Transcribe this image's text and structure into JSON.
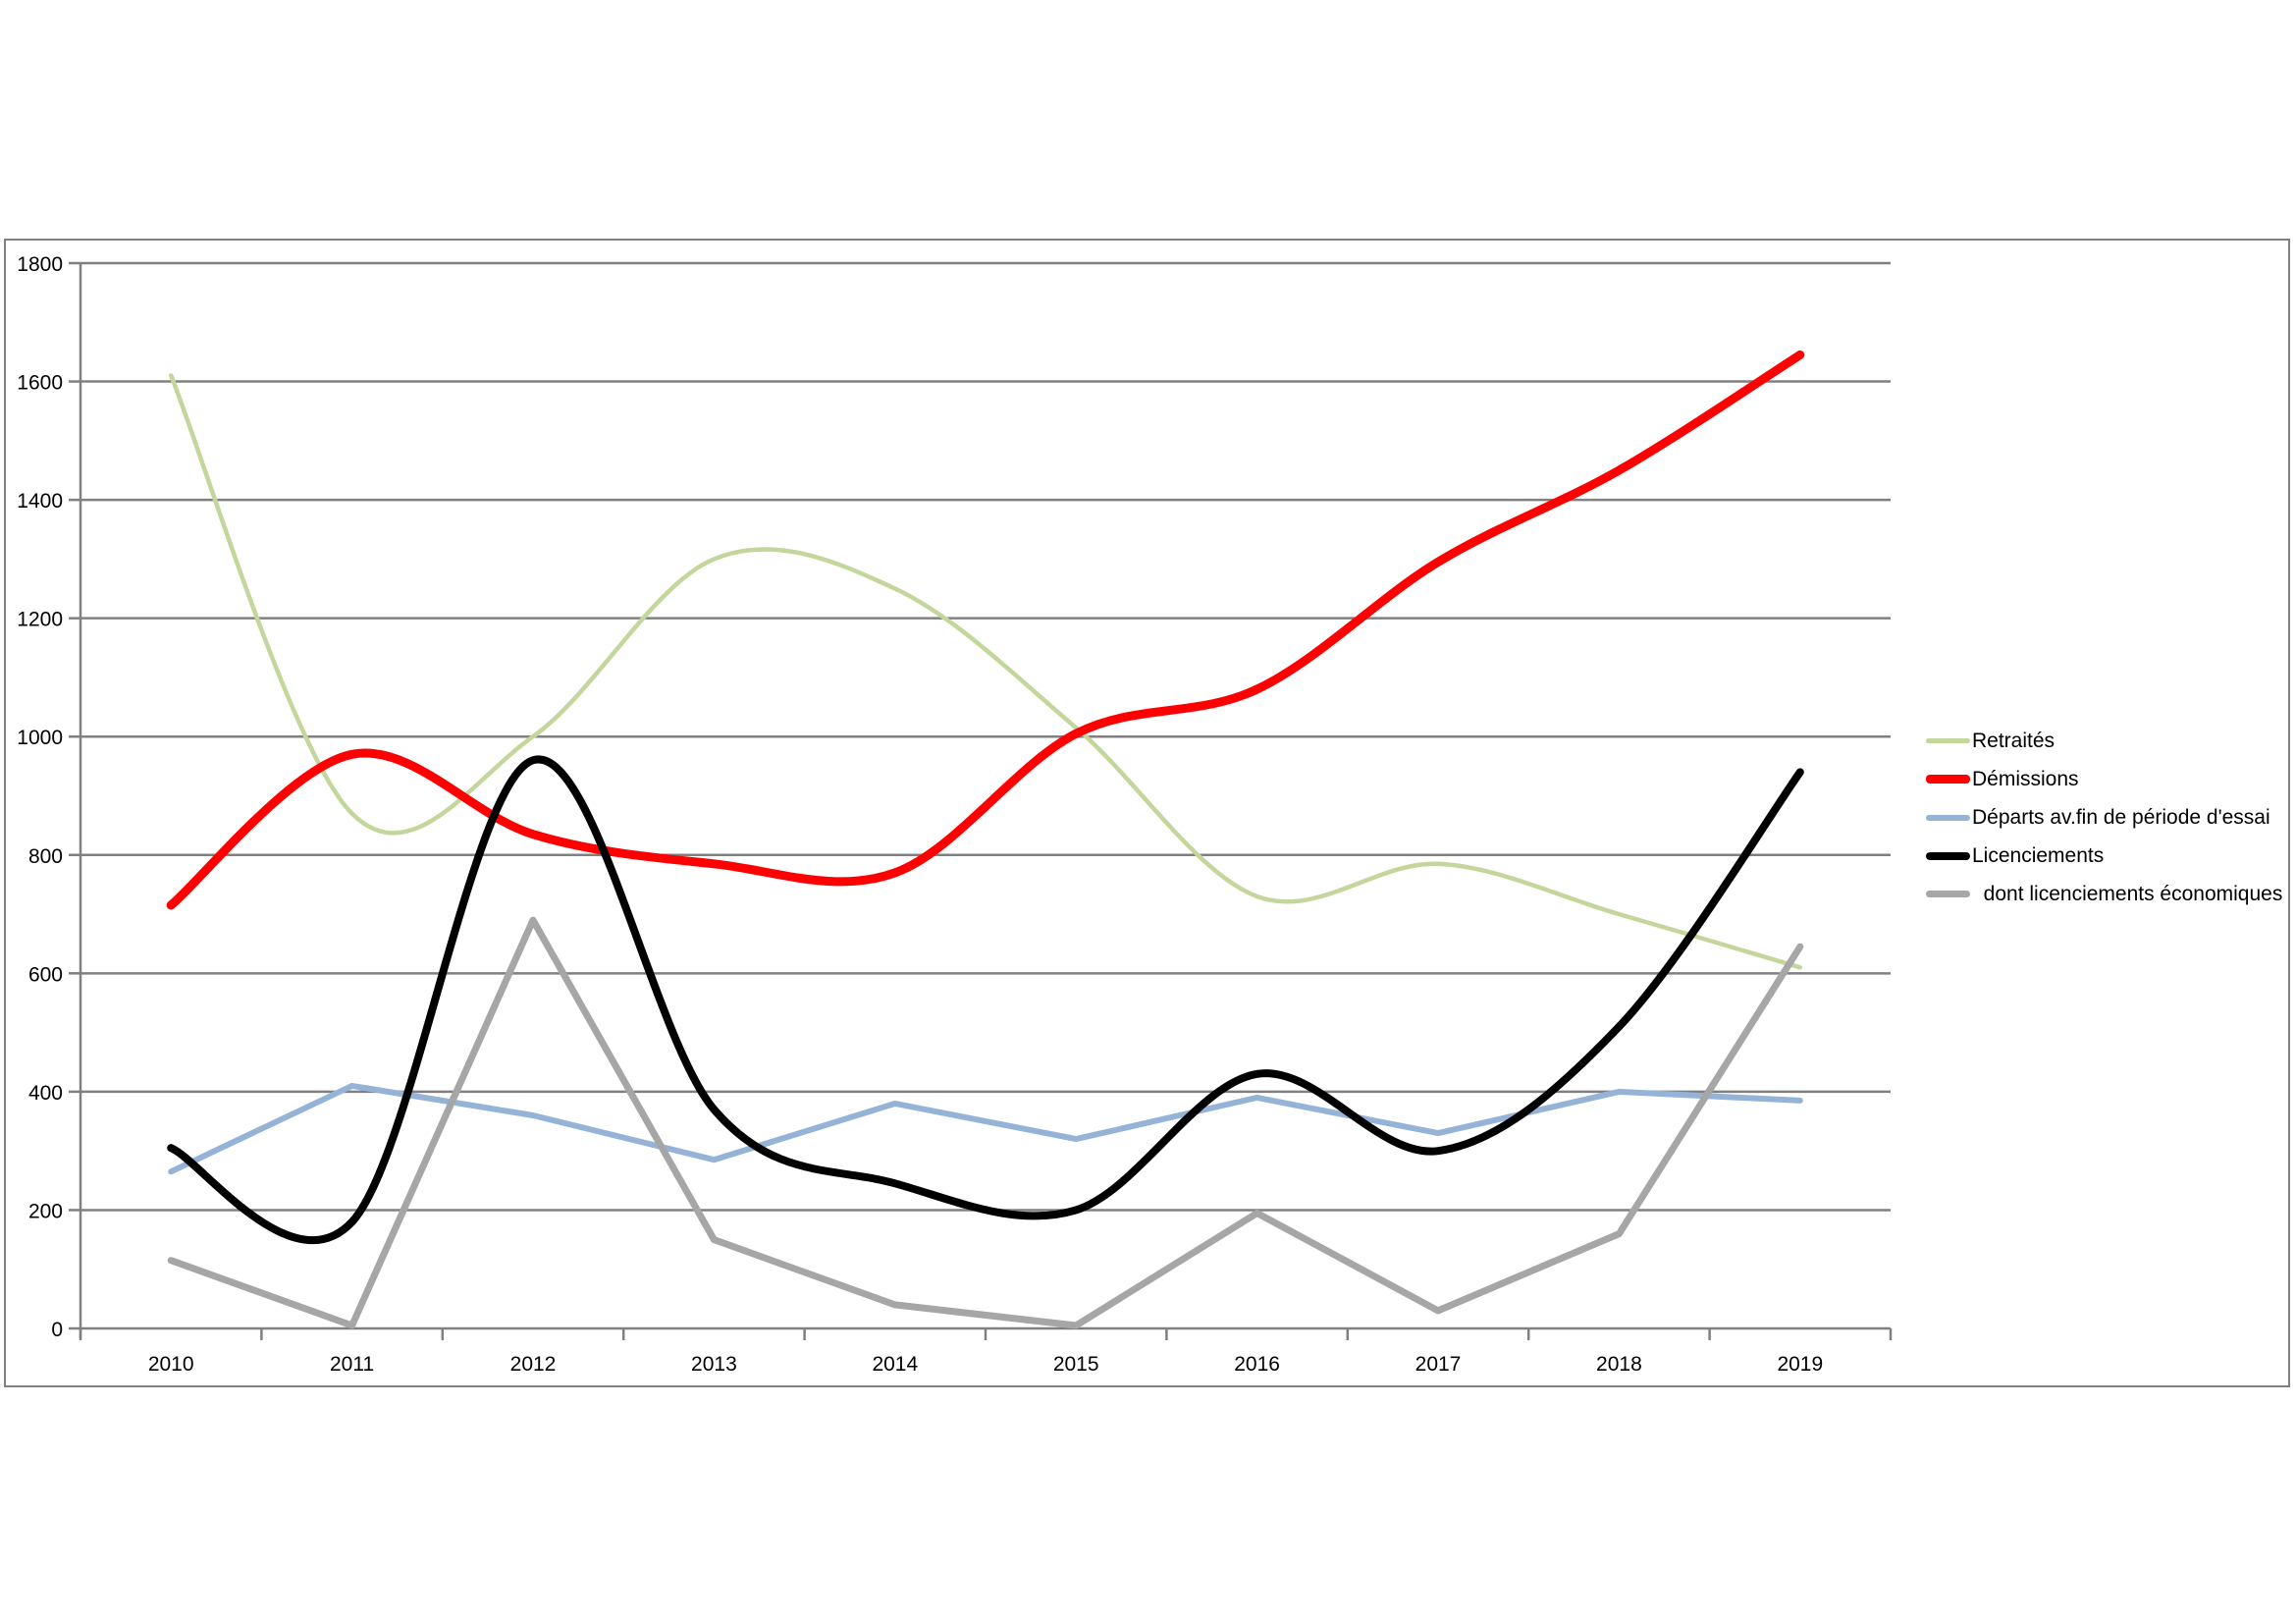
{
  "chart_data": {
    "type": "line",
    "title": "",
    "xlabel": "",
    "ylabel": "",
    "categories": [
      "2010",
      "2011",
      "2012",
      "2013",
      "2014",
      "2015",
      "2016",
      "2017",
      "2018",
      "2019"
    ],
    "ylim": [
      0,
      1800
    ],
    "ytick_step": 200,
    "y_tick_labels": [
      "0",
      "200",
      "400",
      "600",
      "800",
      "1000",
      "1200",
      "1400",
      "1600",
      "1800"
    ],
    "grid": true,
    "legend_position": "right",
    "series": [
      {
        "name": "Retraités",
        "color": "#C3D69B",
        "stroke_width": 4.5,
        "smooth": true,
        "values": [
          1610,
          870,
          1000,
          1300,
          1250,
          1015,
          730,
          785,
          700,
          610
        ]
      },
      {
        "name": "Démissions",
        "color": "#FF0000",
        "stroke_width": 9,
        "smooth": true,
        "values": [
          715,
          970,
          835,
          785,
          770,
          1005,
          1080,
          1295,
          1450,
          1645
        ]
      },
      {
        "name": "Départs av.fin de période d'essai",
        "color": "#95B3D7",
        "stroke_width": 6,
        "smooth": false,
        "values": [
          265,
          410,
          360,
          285,
          380,
          320,
          390,
          330,
          400,
          385
        ]
      },
      {
        "name": "Licenciements",
        "color": "#000000",
        "stroke_width": 8,
        "smooth": true,
        "values": [
          305,
          180,
          960,
          370,
          245,
          200,
          430,
          300,
          510,
          940
        ]
      },
      {
        "name": "  dont licenciements économiques",
        "color": "#A6A6A6",
        "stroke_width": 7,
        "smooth": false,
        "values": [
          115,
          5,
          690,
          150,
          40,
          5,
          195,
          30,
          160,
          645
        ]
      }
    ],
    "colors": {
      "gridline": "#808080",
      "axis": "#808080",
      "frame_border": "#808080",
      "background": "#FFFFFF"
    }
  }
}
